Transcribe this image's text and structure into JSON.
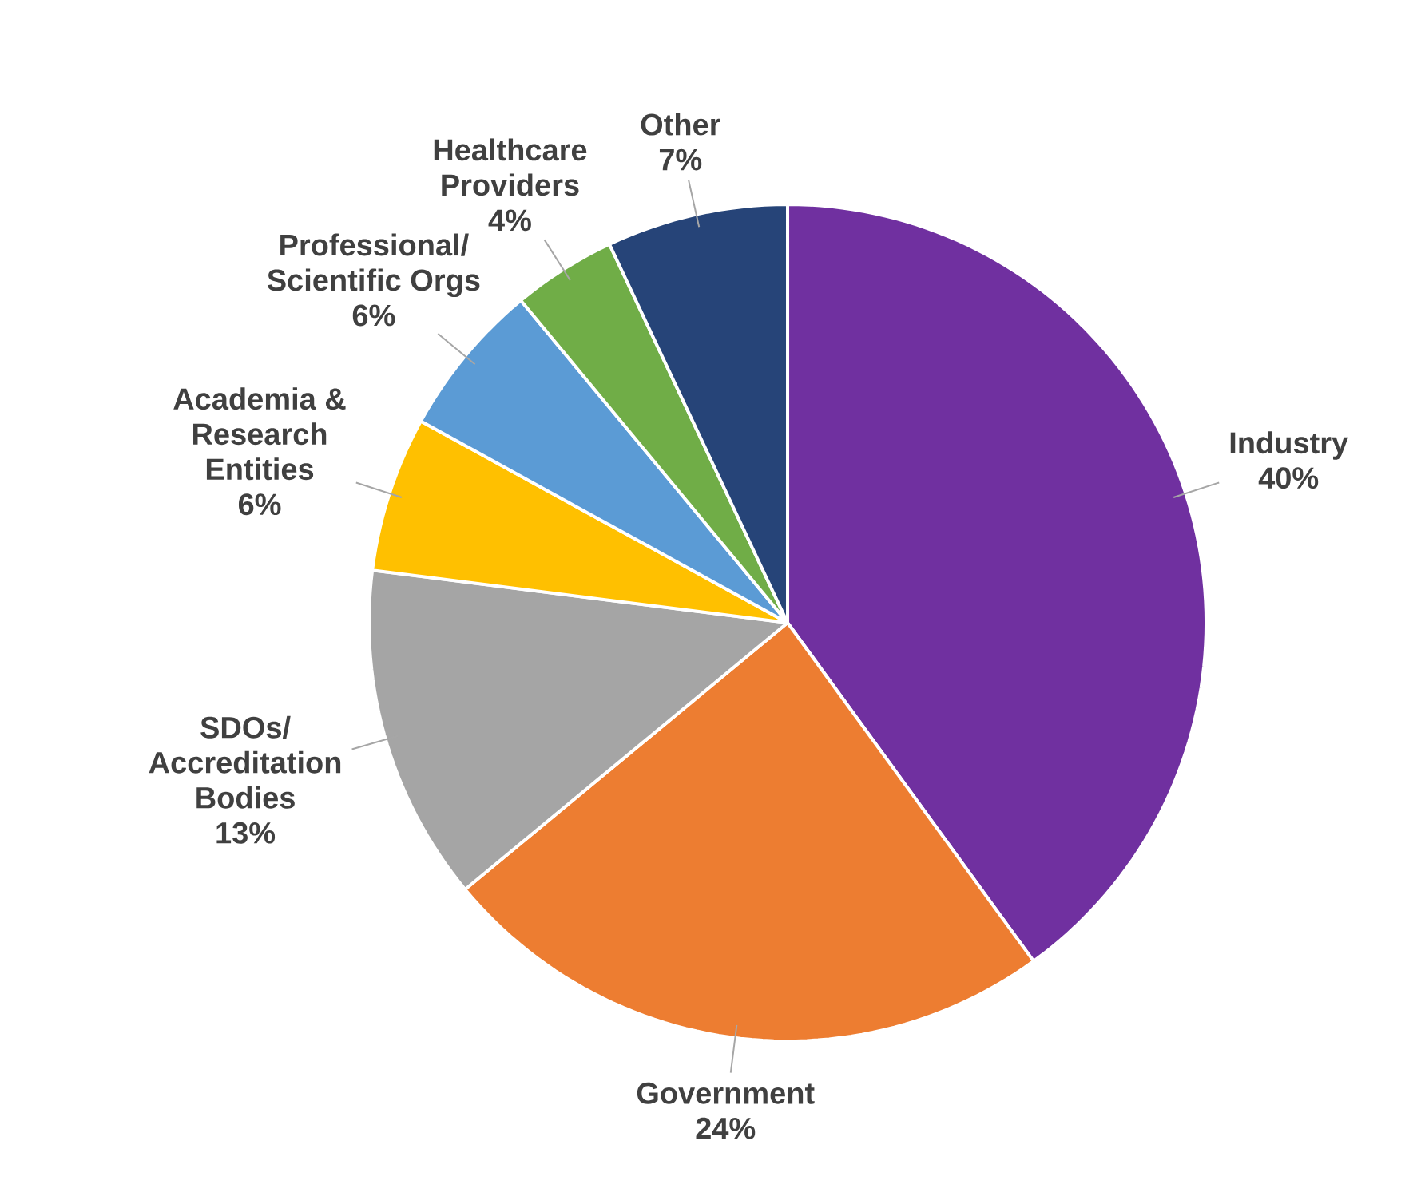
{
  "chart_data": {
    "type": "pie",
    "categories": [
      "Industry",
      "Government",
      "SDOs/ Accreditation Bodies",
      "Academia & Research Entities",
      "Professional/ Scientific Orgs",
      "Healthcare Providers",
      "Other"
    ],
    "values": [
      40,
      24,
      13,
      6,
      6,
      4,
      7
    ],
    "value_labels": [
      "40%",
      "24%",
      "13%",
      "6%",
      "6%",
      "4%",
      "7%"
    ],
    "colors": [
      "#7030a0",
      "#ed7d31",
      "#a5a5a5",
      "#ffc000",
      "#5b9bd5",
      "#70ad47",
      "#264478"
    ]
  }
}
